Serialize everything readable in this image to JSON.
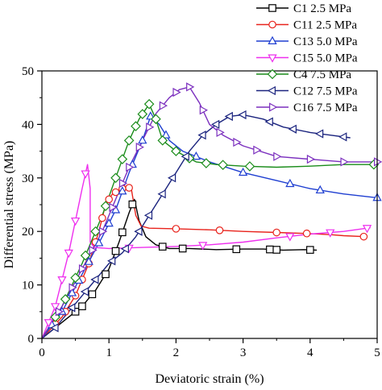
{
  "chart_data": {
    "type": "line",
    "title": "",
    "xlabel": "Deviatoric strain (%)",
    "ylabel": "Differential stress (MPa)",
    "xlim": [
      0,
      5
    ],
    "ylim": [
      0,
      50
    ],
    "xticks": [
      "0",
      "1",
      "2",
      "3",
      "4",
      "5"
    ],
    "yticks": [
      "0",
      "10",
      "20",
      "30",
      "40",
      "50"
    ],
    "grid": false,
    "legend_position": "top-right",
    "series": [
      {
        "name": "C1 2.5 MPa",
        "color": "#000000",
        "marker": "square",
        "points": [
          [
            0,
            0
          ],
          [
            0.2,
            2
          ],
          [
            0.4,
            4
          ],
          [
            0.6,
            6
          ],
          [
            0.8,
            9
          ],
          [
            1.0,
            13
          ],
          [
            1.15,
            18
          ],
          [
            1.3,
            23.5
          ],
          [
            1.38,
            26
          ],
          [
            1.45,
            22
          ],
          [
            1.55,
            19
          ],
          [
            1.7,
            17.5
          ],
          [
            1.9,
            16.8
          ],
          [
            2.2,
            16.8
          ],
          [
            2.6,
            16.6
          ],
          [
            3.0,
            16.7
          ],
          [
            3.3,
            16.7
          ],
          [
            3.6,
            16.5
          ],
          [
            3.9,
            16.6
          ],
          [
            4.1,
            16.5
          ]
        ],
        "markers_x": [
          0.5,
          0.6,
          0.75,
          0.95,
          1.1,
          1.2,
          1.35,
          1.8,
          2.1,
          2.9,
          3.4,
          3.5,
          4.0
        ]
      },
      {
        "name": "C11 2.5 MPa",
        "color": "#e8231c",
        "marker": "circle",
        "points": [
          [
            0,
            0
          ],
          [
            0.3,
            4
          ],
          [
            0.5,
            8
          ],
          [
            0.7,
            14
          ],
          [
            0.85,
            20
          ],
          [
            0.95,
            25
          ],
          [
            1.05,
            27
          ],
          [
            1.2,
            28
          ],
          [
            1.33,
            28.2
          ],
          [
            1.4,
            23
          ],
          [
            1.48,
            21
          ],
          [
            1.6,
            20.6
          ],
          [
            2.0,
            20.5
          ],
          [
            2.5,
            20.3
          ],
          [
            3.0,
            20
          ],
          [
            3.5,
            19.8
          ],
          [
            4.0,
            19.6
          ],
          [
            4.3,
            19.4
          ],
          [
            4.5,
            19.2
          ],
          [
            4.85,
            19
          ]
        ],
        "markers_x": [
          0.2,
          0.35,
          0.5,
          0.6,
          0.7,
          0.8,
          0.9,
          1.0,
          1.1,
          1.2,
          1.3,
          2.0,
          2.65,
          3.5,
          3.95,
          4.8
        ]
      },
      {
        "name": "C13 5.0 MPa",
        "color": "#1f3fd1",
        "marker": "triangle-up",
        "points": [
          [
            0,
            0
          ],
          [
            0.3,
            5
          ],
          [
            0.6,
            12
          ],
          [
            0.9,
            19
          ],
          [
            1.1,
            24
          ],
          [
            1.3,
            31
          ],
          [
            1.5,
            37
          ],
          [
            1.62,
            41.5
          ],
          [
            1.75,
            40
          ],
          [
            1.9,
            37
          ],
          [
            2.1,
            35
          ],
          [
            2.5,
            33
          ],
          [
            3.0,
            31
          ],
          [
            3.5,
            29.5
          ],
          [
            4.0,
            28
          ],
          [
            4.5,
            27
          ],
          [
            5.0,
            26.3
          ]
        ],
        "markers_x": [
          0.15,
          0.3,
          0.45,
          0.55,
          0.7,
          0.85,
          1.0,
          1.1,
          1.2,
          1.35,
          1.5,
          1.62,
          1.85,
          2.3,
          3.0,
          3.7,
          4.15,
          5.0
        ]
      },
      {
        "name": "C15 5.0 MPa",
        "color": "#ee2fee",
        "marker": "triangle-down",
        "points": [
          [
            0,
            0
          ],
          [
            0.1,
            3
          ],
          [
            0.2,
            6
          ],
          [
            0.3,
            11
          ],
          [
            0.4,
            16
          ],
          [
            0.5,
            22
          ],
          [
            0.6,
            28
          ],
          [
            0.68,
            32.5
          ],
          [
            0.72,
            28
          ],
          [
            0.72,
            18
          ],
          [
            0.78,
            17
          ],
          [
            1.0,
            16.8
          ],
          [
            1.5,
            17
          ],
          [
            2.0,
            17.2
          ],
          [
            2.5,
            17.5
          ],
          [
            3.0,
            18
          ],
          [
            3.5,
            18.8
          ],
          [
            4.0,
            19.5
          ],
          [
            4.5,
            20
          ],
          [
            4.9,
            20.7
          ]
        ],
        "markers_x": [
          0.1,
          0.2,
          0.3,
          0.4,
          0.5,
          0.65,
          1.3,
          2.4,
          3.7,
          4.3,
          4.85
        ]
      },
      {
        "name": "C4 7.5 MPa",
        "color": "#1a8c1a",
        "marker": "diamond",
        "points": [
          [
            0,
            0
          ],
          [
            0.3,
            6
          ],
          [
            0.6,
            14
          ],
          [
            0.9,
            23
          ],
          [
            1.1,
            30
          ],
          [
            1.3,
            37
          ],
          [
            1.45,
            41
          ],
          [
            1.6,
            43.8
          ],
          [
            1.7,
            41
          ],
          [
            1.8,
            37
          ],
          [
            2.0,
            35
          ],
          [
            2.3,
            33
          ],
          [
            2.6,
            32.5
          ],
          [
            3.0,
            32.2
          ],
          [
            3.5,
            32
          ],
          [
            4.0,
            32.2
          ],
          [
            4.5,
            32.5
          ],
          [
            5.0,
            32.5
          ]
        ],
        "markers_x": [
          0.2,
          0.35,
          0.5,
          0.65,
          0.8,
          0.95,
          1.1,
          1.2,
          1.3,
          1.4,
          1.5,
          1.6,
          1.7,
          1.8,
          2.0,
          2.2,
          2.45,
          2.7,
          3.1,
          4.95
        ]
      },
      {
        "name": "C12 7.5 MPa",
        "color": "#1a237e",
        "marker": "triangle-left",
        "points": [
          [
            0,
            0
          ],
          [
            0.2,
            2
          ],
          [
            0.4,
            5
          ],
          [
            0.6,
            8
          ],
          [
            0.8,
            11
          ],
          [
            1.0,
            14
          ],
          [
            1.2,
            16
          ],
          [
            1.4,
            19
          ],
          [
            1.6,
            23
          ],
          [
            1.8,
            27
          ],
          [
            2.0,
            31
          ],
          [
            2.2,
            35
          ],
          [
            2.4,
            38
          ],
          [
            2.6,
            40
          ],
          [
            2.8,
            41.5
          ],
          [
            3.0,
            41.8
          ],
          [
            3.3,
            41
          ],
          [
            3.6,
            39.5
          ],
          [
            4.0,
            38.5
          ],
          [
            4.3,
            38
          ],
          [
            4.6,
            37.5
          ]
        ],
        "markers_x": [
          0.2,
          0.45,
          0.65,
          0.8,
          1.05,
          1.25,
          1.45,
          1.6,
          1.8,
          1.95,
          2.15,
          2.4,
          2.6,
          2.8,
          3.0,
          3.4,
          3.75,
          4.15,
          4.5
        ]
      },
      {
        "name": "C16 7.5 MPa",
        "color": "#7b2fbe",
        "marker": "triangle-right",
        "points": [
          [
            0,
            0
          ],
          [
            0.3,
            6
          ],
          [
            0.6,
            13
          ],
          [
            0.9,
            20
          ],
          [
            1.1,
            26
          ],
          [
            1.3,
            32
          ],
          [
            1.5,
            37
          ],
          [
            1.7,
            42
          ],
          [
            1.9,
            45
          ],
          [
            2.05,
            46.5
          ],
          [
            2.2,
            47
          ],
          [
            2.35,
            44
          ],
          [
            2.5,
            40
          ],
          [
            2.7,
            38
          ],
          [
            3.0,
            36
          ],
          [
            3.5,
            34
          ],
          [
            4.0,
            33.5
          ],
          [
            4.5,
            33
          ],
          [
            5.0,
            33
          ]
        ],
        "markers_x": [
          0.25,
          0.45,
          0.6,
          0.75,
          0.9,
          1.05,
          1.2,
          1.3,
          1.45,
          1.6,
          1.8,
          2.0,
          2.2,
          2.4,
          2.65,
          2.9,
          3.2,
          3.5,
          4.0,
          4.5,
          5.0
        ]
      }
    ]
  }
}
